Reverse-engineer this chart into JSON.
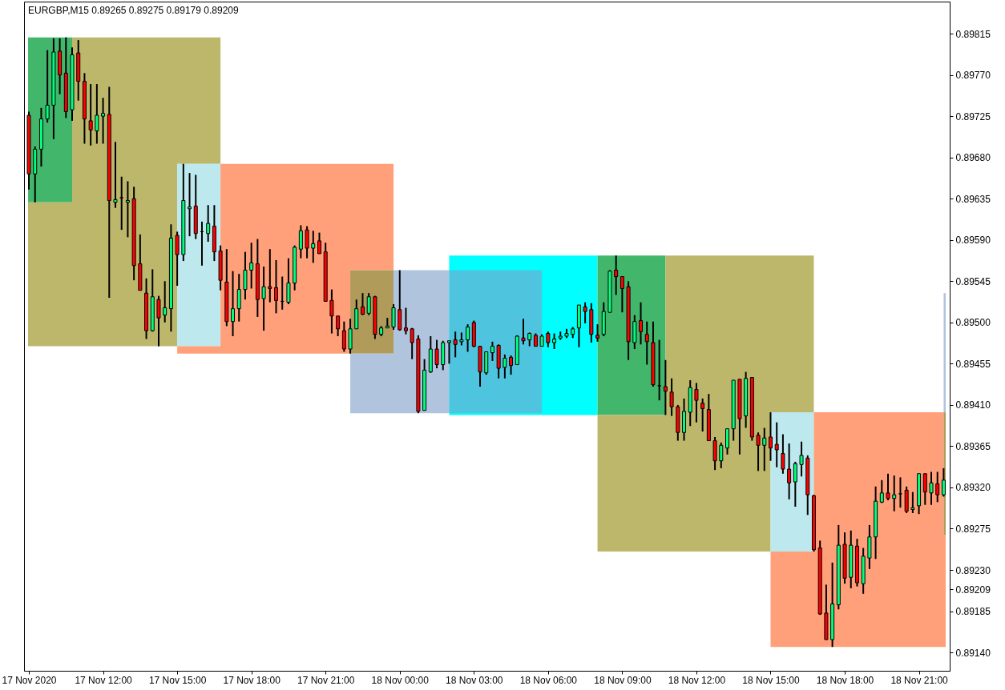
{
  "chart_data": {
    "type": "candlestick",
    "title": "EURGBP,M15 0.89265 0.89275 0.89179 0.89209",
    "x": [
      "2020-11-17T09:00",
      "2020-11-17T09:15",
      "2020-11-17T09:30",
      "2020-11-17T09:45",
      "2020-11-17T10:00",
      "2020-11-17T10:15",
      "2020-11-17T10:30",
      "2020-11-17T10:45",
      "2020-11-17T11:00",
      "2020-11-17T11:15",
      "2020-11-17T11:30",
      "2020-11-17T11:45",
      "2020-11-17T12:00",
      "2020-11-17T12:15",
      "2020-11-17T12:30",
      "2020-11-17T12:45",
      "2020-11-17T13:00",
      "2020-11-17T13:15",
      "2020-11-17T13:30",
      "2020-11-17T13:45",
      "2020-11-17T14:00",
      "2020-11-17T14:15",
      "2020-11-17T14:30",
      "2020-11-17T14:45",
      "2020-11-17T15:00",
      "2020-11-17T15:15",
      "2020-11-17T15:30",
      "2020-11-17T15:45",
      "2020-11-17T16:00",
      "2020-11-17T16:15",
      "2020-11-17T16:30",
      "2020-11-17T16:45",
      "2020-11-17T17:00",
      "2020-11-17T17:15",
      "2020-11-17T17:30",
      "2020-11-17T17:45",
      "2020-11-17T18:00",
      "2020-11-17T18:15",
      "2020-11-17T18:30",
      "2020-11-17T18:45",
      "2020-11-17T19:00",
      "2020-11-17T19:15",
      "2020-11-17T19:30",
      "2020-11-17T19:45",
      "2020-11-17T20:00",
      "2020-11-17T20:15",
      "2020-11-17T20:30",
      "2020-11-17T20:45",
      "2020-11-17T21:00",
      "2020-11-17T21:15",
      "2020-11-17T21:30",
      "2020-11-17T21:45",
      "2020-11-17T22:00",
      "2020-11-17T22:15",
      "2020-11-17T22:30",
      "2020-11-17T22:45",
      "2020-11-17T23:00",
      "2020-11-17T23:15",
      "2020-11-17T23:30",
      "2020-11-17T23:45",
      "2020-11-18T00:00",
      "2020-11-18T00:15",
      "2020-11-18T00:30",
      "2020-11-18T00:45",
      "2020-11-18T01:00",
      "2020-11-18T01:15",
      "2020-11-18T01:30",
      "2020-11-18T01:45",
      "2020-11-18T02:00",
      "2020-11-18T02:15",
      "2020-11-18T02:30",
      "2020-11-18T02:45",
      "2020-11-18T03:00",
      "2020-11-18T03:15",
      "2020-11-18T03:30",
      "2020-11-18T03:45",
      "2020-11-18T04:00",
      "2020-11-18T04:15",
      "2020-11-18T04:30",
      "2020-11-18T04:45",
      "2020-11-18T05:00",
      "2020-11-18T05:15",
      "2020-11-18T05:30",
      "2020-11-18T05:45",
      "2020-11-18T06:00",
      "2020-11-18T06:15",
      "2020-11-18T06:30",
      "2020-11-18T06:45",
      "2020-11-18T07:00",
      "2020-11-18T07:15",
      "2020-11-18T07:30",
      "2020-11-18T07:45",
      "2020-11-18T08:00",
      "2020-11-18T08:15",
      "2020-11-18T08:30",
      "2020-11-18T08:45",
      "2020-11-18T09:00",
      "2020-11-18T09:15",
      "2020-11-18T09:30",
      "2020-11-18T09:45",
      "2020-11-18T10:00",
      "2020-11-18T10:15",
      "2020-11-18T10:30",
      "2020-11-18T10:45",
      "2020-11-18T11:00",
      "2020-11-18T11:15",
      "2020-11-18T11:30",
      "2020-11-18T11:45",
      "2020-11-18T12:00",
      "2020-11-18T12:15",
      "2020-11-18T12:30",
      "2020-11-18T12:45",
      "2020-11-18T13:00",
      "2020-11-18T13:15",
      "2020-11-18T13:30",
      "2020-11-18T13:45",
      "2020-11-18T14:00",
      "2020-11-18T14:15",
      "2020-11-18T14:30",
      "2020-11-18T14:45",
      "2020-11-18T15:00",
      "2020-11-18T15:15",
      "2020-11-18T15:30",
      "2020-11-18T15:45",
      "2020-11-18T16:00",
      "2020-11-18T16:15",
      "2020-11-18T16:30",
      "2020-11-18T16:45",
      "2020-11-18T17:00",
      "2020-11-18T17:15",
      "2020-11-18T17:30",
      "2020-11-18T17:45",
      "2020-11-18T18:00",
      "2020-11-18T18:15",
      "2020-11-18T18:30",
      "2020-11-18T18:45",
      "2020-11-18T19:00",
      "2020-11-18T19:15",
      "2020-11-18T19:30",
      "2020-11-18T19:45",
      "2020-11-18T20:00",
      "2020-11-18T20:15",
      "2020-11-18T20:30",
      "2020-11-18T20:45",
      "2020-11-18T21:00",
      "2020-11-18T21:15",
      "2020-11-18T21:30",
      "2020-11-18T21:45",
      "2020-11-18T22:00"
    ],
    "ohlc": [
      [
        0.89726,
        0.8973,
        0.89645,
        0.89662
      ],
      [
        0.89662,
        0.89692,
        0.89631,
        0.89689
      ],
      [
        0.89689,
        0.89734,
        0.8967,
        0.89722
      ],
      [
        0.89722,
        0.89797,
        0.89718,
        0.89737
      ],
      [
        0.89737,
        0.8981,
        0.897,
        0.89795
      ],
      [
        0.89796,
        0.8981,
        0.89749,
        0.8977
      ],
      [
        0.89772,
        0.89811,
        0.89723,
        0.8973
      ],
      [
        0.89732,
        0.898,
        0.8972,
        0.89792
      ],
      [
        0.89794,
        0.89808,
        0.89742,
        0.89763
      ],
      [
        0.89763,
        0.89772,
        0.89695,
        0.89722
      ],
      [
        0.8972,
        0.8976,
        0.89693,
        0.8971
      ],
      [
        0.89709,
        0.8976,
        0.89695,
        0.89726
      ],
      [
        0.89725,
        0.89745,
        0.89695,
        0.89728
      ],
      [
        0.89727,
        0.89757,
        0.89527,
        0.89633
      ],
      [
        0.89631,
        0.89697,
        0.89625,
        0.89634
      ],
      [
        0.89636,
        0.89659,
        0.89601,
        0.89636
      ],
      [
        0.89631,
        0.89654,
        0.89593,
        0.89633
      ],
      [
        0.89635,
        0.89648,
        0.89546,
        0.89562
      ],
      [
        0.89564,
        0.89596,
        0.89535,
        0.89535
      ],
      [
        0.89532,
        0.89548,
        0.89482,
        0.89491
      ],
      [
        0.89491,
        0.89558,
        0.8949,
        0.89528
      ],
      [
        0.89525,
        0.89529,
        0.89474,
        0.89505
      ],
      [
        0.89508,
        0.89545,
        0.895,
        0.89516
      ],
      [
        0.89515,
        0.89607,
        0.8949,
        0.89592
      ],
      [
        0.89595,
        0.89599,
        0.8954,
        0.89574
      ],
      [
        0.89574,
        0.89673,
        0.89567,
        0.89633
      ],
      [
        0.89624,
        0.89663,
        0.89594,
        0.89626
      ],
      [
        0.89627,
        0.89661,
        0.89591,
        0.89597
      ],
      [
        0.89599,
        0.8961,
        0.89562,
        0.89599
      ],
      [
        0.89597,
        0.89628,
        0.89588,
        0.89608
      ],
      [
        0.89605,
        0.89628,
        0.89567,
        0.89577
      ],
      [
        0.89578,
        0.89584,
        0.89535,
        0.89546
      ],
      [
        0.89544,
        0.8958,
        0.89496,
        0.89501
      ],
      [
        0.89501,
        0.89556,
        0.89485,
        0.89515
      ],
      [
        0.89515,
        0.89553,
        0.89501,
        0.89536
      ],
      [
        0.89536,
        0.89577,
        0.89525,
        0.89557
      ],
      [
        0.89557,
        0.89587,
        0.89537,
        0.89565
      ],
      [
        0.89564,
        0.89591,
        0.89506,
        0.89525
      ],
      [
        0.89526,
        0.89561,
        0.89491,
        0.89539
      ],
      [
        0.89539,
        0.8958,
        0.89522,
        0.89537
      ],
      [
        0.89538,
        0.89568,
        0.8951,
        0.89524
      ],
      [
        0.89523,
        0.8955,
        0.89514,
        0.89523
      ],
      [
        0.89522,
        0.8957,
        0.8952,
        0.89543
      ],
      [
        0.89543,
        0.89584,
        0.89535,
        0.89582
      ],
      [
        0.8958,
        0.89606,
        0.8957,
        0.896
      ],
      [
        0.89601,
        0.89605,
        0.8957,
        0.89581
      ],
      [
        0.89581,
        0.896,
        0.89565,
        0.89586
      ],
      [
        0.89589,
        0.89598,
        0.89575,
        0.89575
      ],
      [
        0.89577,
        0.89587,
        0.89523,
        0.89523
      ],
      [
        0.89524,
        0.89536,
        0.89488,
        0.89507
      ],
      [
        0.89507,
        0.89507,
        0.89485,
        0.89493
      ],
      [
        0.89491,
        0.89501,
        0.89468,
        0.89471
      ],
      [
        0.89471,
        0.89504,
        0.89466,
        0.89493
      ],
      [
        0.89493,
        0.89525,
        0.89493,
        0.89515
      ],
      [
        0.89517,
        0.89532,
        0.89508,
        0.89509
      ],
      [
        0.8951,
        0.89532,
        0.89508,
        0.89528
      ],
      [
        0.89528,
        0.89529,
        0.89482,
        0.89487
      ],
      [
        0.89487,
        0.89496,
        0.89485,
        0.89494
      ],
      [
        0.89494,
        0.89505,
        0.89494,
        0.89496
      ],
      [
        0.89495,
        0.8952,
        0.89492,
        0.89516
      ],
      [
        0.89514,
        0.89557,
        0.89491,
        0.89492
      ],
      [
        0.89494,
        0.89516,
        0.89487,
        0.89491
      ],
      [
        0.89493,
        0.89494,
        0.8946,
        0.89478
      ],
      [
        0.89482,
        0.89486,
        0.89401,
        0.89403
      ],
      [
        0.89404,
        0.8946,
        0.89404,
        0.89448
      ],
      [
        0.89446,
        0.89485,
        0.89445,
        0.89471
      ],
      [
        0.89471,
        0.89481,
        0.8945,
        0.89454
      ],
      [
        0.89454,
        0.8948,
        0.89448,
        0.89478
      ],
      [
        0.89478,
        0.8948,
        0.89455,
        0.8948
      ],
      [
        0.89481,
        0.8949,
        0.89462,
        0.89476
      ],
      [
        0.89479,
        0.89489,
        0.89475,
        0.89481
      ],
      [
        0.89481,
        0.89498,
        0.89468,
        0.89495
      ],
      [
        0.895,
        0.89502,
        0.89473,
        0.89474
      ],
      [
        0.89474,
        0.89474,
        0.8943,
        0.89446
      ],
      [
        0.89445,
        0.89468,
        0.89443,
        0.89468
      ],
      [
        0.89467,
        0.89479,
        0.89458,
        0.89474
      ],
      [
        0.89475,
        0.89476,
        0.89439,
        0.8945
      ],
      [
        0.89451,
        0.89465,
        0.89439,
        0.89461
      ],
      [
        0.89462,
        0.89464,
        0.89443,
        0.89453
      ],
      [
        0.89454,
        0.89486,
        0.89454,
        0.89485
      ],
      [
        0.89483,
        0.89504,
        0.89476,
        0.8948
      ],
      [
        0.89481,
        0.89489,
        0.89474,
        0.89488
      ],
      [
        0.89486,
        0.89488,
        0.89474,
        0.89474
      ],
      [
        0.89474,
        0.89487,
        0.89474,
        0.89485
      ],
      [
        0.89488,
        0.8949,
        0.89473,
        0.89478
      ],
      [
        0.89478,
        0.89488,
        0.89471,
        0.89482
      ],
      [
        0.89483,
        0.8949,
        0.89481,
        0.89485
      ],
      [
        0.89485,
        0.89493,
        0.89483,
        0.89488
      ],
      [
        0.89487,
        0.89495,
        0.89483,
        0.89493
      ],
      [
        0.89494,
        0.89519,
        0.89473,
        0.89519
      ],
      [
        0.89517,
        0.89522,
        0.89499,
        0.89512
      ],
      [
        0.89514,
        0.89521,
        0.89478,
        0.89487
      ],
      [
        0.89486,
        0.89498,
        0.89479,
        0.89483
      ],
      [
        0.89487,
        0.89522,
        0.89485,
        0.89512
      ],
      [
        0.89511,
        0.89557,
        0.89511,
        0.89556
      ],
      [
        0.89557,
        0.89573,
        0.8953,
        0.8955
      ],
      [
        0.8955,
        0.8955,
        0.89511,
        0.89537
      ],
      [
        0.89539,
        0.89545,
        0.89459,
        0.89479
      ],
      [
        0.89478,
        0.89508,
        0.89471,
        0.89501
      ],
      [
        0.89502,
        0.89522,
        0.89476,
        0.8949
      ],
      [
        0.89487,
        0.89501,
        0.89454,
        0.89479
      ],
      [
        0.89478,
        0.89501,
        0.8943,
        0.89432
      ],
      [
        0.89431,
        0.89481,
        0.89415,
        0.89431
      ],
      [
        0.8943,
        0.89459,
        0.89399,
        0.89425
      ],
      [
        0.89424,
        0.89439,
        0.89398,
        0.89408
      ],
      [
        0.89408,
        0.8941,
        0.89371,
        0.8938
      ],
      [
        0.8938,
        0.89417,
        0.89371,
        0.89403
      ],
      [
        0.89402,
        0.89437,
        0.89387,
        0.89429
      ],
      [
        0.89427,
        0.89434,
        0.89391,
        0.89415
      ],
      [
        0.89412,
        0.89417,
        0.89381,
        0.89406
      ],
      [
        0.89405,
        0.89422,
        0.89371,
        0.89371
      ],
      [
        0.89371,
        0.89375,
        0.89339,
        0.89349
      ],
      [
        0.89349,
        0.89369,
        0.89341,
        0.89366
      ],
      [
        0.89363,
        0.89384,
        0.89356,
        0.89384
      ],
      [
        0.89384,
        0.89437,
        0.89371,
        0.89437
      ],
      [
        0.89438,
        0.89438,
        0.89356,
        0.89395
      ],
      [
        0.89398,
        0.89446,
        0.89385,
        0.89439
      ],
      [
        0.8944,
        0.8944,
        0.89371,
        0.89375
      ],
      [
        0.89377,
        0.8938,
        0.89338,
        0.89366
      ],
      [
        0.89366,
        0.89385,
        0.89338,
        0.89374
      ],
      [
        0.89375,
        0.89402,
        0.89349,
        0.89363
      ],
      [
        0.89367,
        0.89391,
        0.89342,
        0.89361
      ],
      [
        0.89357,
        0.89378,
        0.89335,
        0.8934
      ],
      [
        0.8934,
        0.89368,
        0.89307,
        0.89325
      ],
      [
        0.89326,
        0.89348,
        0.89299,
        0.89346
      ],
      [
        0.89345,
        0.8937,
        0.89332,
        0.89355
      ],
      [
        0.89352,
        0.89355,
        0.8929,
        0.89312
      ],
      [
        0.89311,
        0.89312,
        0.8925,
        0.89252
      ],
      [
        0.89254,
        0.89262,
        0.89181,
        0.89182
      ],
      [
        0.89183,
        0.89214,
        0.89154,
        0.89154
      ],
      [
        0.89154,
        0.89238,
        0.89146,
        0.89193
      ],
      [
        0.89192,
        0.89279,
        0.89187,
        0.89257
      ],
      [
        0.89258,
        0.89271,
        0.89215,
        0.89221
      ],
      [
        0.89222,
        0.89273,
        0.8921,
        0.89257
      ],
      [
        0.89256,
        0.89264,
        0.89212,
        0.89216
      ],
      [
        0.89215,
        0.89254,
        0.89204,
        0.89245
      ],
      [
        0.89243,
        0.89279,
        0.89231,
        0.89266
      ],
      [
        0.89266,
        0.89321,
        0.89242,
        0.89305
      ],
      [
        0.89304,
        0.89328,
        0.89303,
        0.89314
      ],
      [
        0.89314,
        0.89335,
        0.89306,
        0.89308
      ],
      [
        0.89308,
        0.89333,
        0.89294,
        0.89312
      ],
      [
        0.89313,
        0.89331,
        0.89298,
        0.89313
      ],
      [
        0.89317,
        0.89321,
        0.89292,
        0.89294
      ],
      [
        0.89296,
        0.89315,
        0.89292,
        0.89298
      ],
      [
        0.893,
        0.89335,
        0.89291,
        0.89335
      ],
      [
        0.89335,
        0.89335,
        0.89301,
        0.89315
      ],
      [
        0.89314,
        0.89337,
        0.89301,
        0.89325
      ],
      [
        0.89324,
        0.89337,
        0.89304,
        0.89312
      ],
      [
        0.89312,
        0.89341,
        0.8931,
        0.89328
      ]
    ],
    "colors": [
      "#ff0000",
      "#00ff7f",
      "#00ff7f",
      "#00ff7f",
      "#00ff7f",
      "#ff0000",
      "#ff0000",
      "#00ff7f",
      "#ff0000",
      "#ff0000",
      "#ff0000",
      "#00ff7f",
      "#00ff7f",
      "#ff0000",
      "#00ff7f",
      "#000000",
      "#00ff7f",
      "#ff0000",
      "#ff0000",
      "#ff0000",
      "#00ff7f",
      "#ff0000",
      "#00ff7f",
      "#00ff7f",
      "#ff0000",
      "#00ff7f",
      "#00ff7f",
      "#ff0000",
      "#000000",
      "#00ff7f",
      "#ff0000",
      "#ff0000",
      "#ff0000",
      "#00ff7f",
      "#00ff7f",
      "#00ff7f",
      "#00ff7f",
      "#ff0000",
      "#00ff7f",
      "#ff0000",
      "#ff0000",
      "#000000",
      "#00ff7f",
      "#00ff7f",
      "#00ff7f",
      "#ff0000",
      "#00ff7f",
      "#ff0000",
      "#ff0000",
      "#ff0000",
      "#ff0000",
      "#ff0000",
      "#00ff7f",
      "#00ff7f",
      "#ff0000",
      "#00ff7f",
      "#ff0000",
      "#00ff7f",
      "#00ff7f",
      "#00ff7f",
      "#ff0000",
      "#ff0000",
      "#ff0000",
      "#ff0000",
      "#00ff7f",
      "#00ff7f",
      "#ff0000",
      "#00ff7f",
      "#00ff7f",
      "#ff0000",
      "#00ff7f",
      "#00ff7f",
      "#ff0000",
      "#ff0000",
      "#00ff7f",
      "#00ff7f",
      "#ff0000",
      "#00ff7f",
      "#ff0000",
      "#00ff7f",
      "#ff0000",
      "#00ff7f",
      "#ff0000",
      "#00ff7f",
      "#ff0000",
      "#00ff7f",
      "#00ff7f",
      "#00ff7f",
      "#00ff7f",
      "#00ff7f",
      "#ff0000",
      "#ff0000",
      "#ff0000",
      "#00ff7f",
      "#00ff7f",
      "#ff0000",
      "#ff0000",
      "#ff0000",
      "#00ff7f",
      "#ff0000",
      "#ff0000",
      "#ff0000",
      "#000000",
      "#ff0000",
      "#ff0000",
      "#ff0000",
      "#00ff7f",
      "#00ff7f",
      "#ff0000",
      "#ff0000",
      "#ff0000",
      "#ff0000",
      "#00ff7f",
      "#00ff7f",
      "#00ff7f",
      "#ff0000",
      "#00ff7f",
      "#ff0000",
      "#ff0000",
      "#00ff7f",
      "#ff0000",
      "#ff0000",
      "#ff0000",
      "#ff0000",
      "#00ff7f",
      "#00ff7f",
      "#ff0000",
      "#ff0000",
      "#ff0000",
      "#ff0000",
      "#00ff7f",
      "#00ff7f",
      "#ff0000",
      "#00ff7f",
      "#ff0000",
      "#00ff7f",
      "#00ff7f",
      "#00ff7f",
      "#00ff7f",
      "#ff0000",
      "#00ff7f",
      "#000000",
      "#ff0000",
      "#00ff7f",
      "#00ff7f",
      "#ff0000",
      "#00ff7f",
      "#ff0000",
      "#00ff7f"
    ],
    "series": [
      {
        "type": "area",
        "color": "#42b76b",
        "x": [
          "2020-11-17T08:58",
          "2020-11-17T10:45"
        ],
        "values": [
          null,
          null
        ],
        "lower": [
          0.89631,
          0.89631
        ],
        "upper": [
          0.89811,
          0.89811
        ]
      },
      {
        "type": "area",
        "color": "#bdb76b",
        "x": [
          "2020-11-17T08:58",
          "2020-11-17T10:45",
          "2020-11-17T10:45",
          "2020-11-17T15:00",
          "2020-11-17T15:00",
          "2020-11-17T16:45"
        ],
        "values": [
          null,
          null,
          null,
          null,
          null,
          null
        ],
        "lower": [
          0.89474,
          0.89474,
          0.89474,
          0.89474,
          0.89673,
          0.89673
        ],
        "upper": [
          0.89631,
          0.89631,
          0.89811,
          0.89811,
          0.89811,
          0.89811
        ]
      },
      {
        "type": "area",
        "color": "#bde8ee",
        "x": [
          "2020-11-17T15:00",
          "2020-11-17T16:45"
        ],
        "values": [
          null,
          null
        ],
        "lower": [
          0.89474,
          0.89474
        ],
        "upper": [
          0.89673,
          0.89673
        ]
      },
      {
        "type": "area",
        "color": "#ffa07a",
        "x": [
          "2020-11-17T15:00",
          "2020-11-17T16:45",
          "2020-11-17T16:45",
          "2020-11-17T22:00",
          "2020-11-17T22:00",
          "2020-11-17T23:45"
        ],
        "values": [
          null,
          null,
          null,
          null,
          null,
          null
        ],
        "lower": [
          0.89466,
          0.89466,
          0.89466,
          0.89466,
          0.89557,
          0.89557
        ],
        "upper": [
          0.89474,
          0.89474,
          0.89673,
          0.89673,
          0.89673,
          0.89673
        ]
      },
      {
        "type": "area",
        "color": "#b09b5b",
        "x": [
          "2020-11-17T22:00",
          "2020-11-17T23:45"
        ],
        "values": [
          null,
          null
        ],
        "lower": [
          0.89466,
          0.89466
        ],
        "upper": [
          0.89557,
          0.89557
        ]
      },
      {
        "type": "area",
        "color": "#b0c4de",
        "x": [
          "2020-11-17T22:00",
          "2020-11-17T23:45",
          "2020-11-17T23:45",
          "2020-11-18T02:00"
        ],
        "values": [
          null,
          null,
          null,
          null
        ],
        "lower": [
          0.89401,
          0.89401,
          0.89401,
          0.89401
        ],
        "upper": [
          0.89466,
          0.89466,
          0.89557,
          0.89557
        ]
      },
      {
        "type": "area",
        "color": "#00ffff",
        "x": [
          "2020-11-18T02:00",
          "2020-11-18T08:00"
        ],
        "values": [
          null,
          null
        ],
        "lower": [
          0.89399,
          0.89399
        ],
        "upper": [
          0.89573,
          0.89573
        ]
      },
      {
        "type": "area",
        "color": "#4fc4de",
        "x": [
          "2020-11-18T02:00",
          "2020-11-18T05:45"
        ],
        "values": [
          null,
          null
        ],
        "lower": [
          0.89401,
          0.89401
        ],
        "upper": [
          0.89557,
          0.89557
        ]
      },
      {
        "type": "area",
        "color": "#42b76b",
        "x": [
          "2020-11-18T08:00",
          "2020-11-18T10:45"
        ],
        "values": [
          null,
          null
        ],
        "lower": [
          0.89399,
          0.89399
        ],
        "upper": [
          0.89573,
          0.89573
        ]
      },
      {
        "type": "area",
        "color": "#bdb76b",
        "x": [
          "2020-11-18T08:00",
          "2020-11-18T10:45",
          "2020-11-18T10:45",
          "2020-11-18T15:00",
          "2020-11-18T15:00",
          "2020-11-18T16:45"
        ],
        "values": [
          null,
          null,
          null,
          null,
          null,
          null
        ],
        "lower": [
          0.8925,
          0.8925,
          0.8925,
          0.8925,
          0.89402,
          0.89402
        ],
        "upper": [
          0.89399,
          0.89399,
          0.89573,
          0.89573,
          0.89573,
          0.89573
        ]
      },
      {
        "type": "area",
        "color": "#bde8ee",
        "x": [
          "2020-11-18T15:00",
          "2020-11-18T16:45"
        ],
        "values": [
          null,
          null
        ],
        "lower": [
          0.8925,
          0.8925
        ],
        "upper": [
          0.89402,
          0.89402
        ]
      },
      {
        "type": "area",
        "color": "#ffa07a",
        "x": [
          "2020-11-18T15:00",
          "2020-11-18T16:45",
          "2020-11-18T16:45",
          "2020-11-18T22:00",
          "2020-11-18T22:00",
          "2020-11-18T22:05"
        ],
        "values": [
          null,
          null,
          null,
          null,
          null,
          null
        ],
        "lower": [
          0.89146,
          0.89146,
          0.89146,
          0.89146,
          0.89146,
          0.89146
        ],
        "upper": [
          0.8925,
          0.8925,
          0.89402,
          0.89402,
          0.89268,
          0.89268
        ]
      },
      {
        "type": "area",
        "color": "#b09b5b",
        "x": [
          "2020-11-18T22:00",
          "2020-11-18T22:05"
        ],
        "values": [
          null,
          null
        ],
        "lower": [
          0.89268,
          0.89268
        ],
        "upper": [
          0.89402,
          0.89402
        ]
      },
      {
        "type": "area",
        "color": "#b0c4de",
        "x": [
          "2020-11-18T22:00",
          "2020-11-18T22:05"
        ],
        "values": [
          null,
          null
        ],
        "lower": [
          0.89402,
          0.89402
        ],
        "upper": [
          0.89532,
          0.89532
        ]
      }
    ],
    "xlim": [
      "2020-11-17T08:58",
      "2020-11-18T22:05"
    ],
    "xticks": [
      {
        "value": "2020-11-17T09:00",
        "label": "17 Nov 2020"
      },
      {
        "value": "2020-11-17T12:00",
        "label": "17 Nov 12:00"
      },
      {
        "value": "2020-11-17T15:00",
        "label": "17 Nov 15:00"
      },
      {
        "value": "2020-11-17T18:00",
        "label": "17 Nov 18:00"
      },
      {
        "value": "2020-11-17T21:00",
        "label": "17 Nov 21:00"
      },
      {
        "value": "2020-11-18T00:00",
        "label": "18 Nov 00:00"
      },
      {
        "value": "2020-11-18T03:00",
        "label": "18 Nov 03:00"
      },
      {
        "value": "2020-11-18T06:00",
        "label": "18 Nov 06:00"
      },
      {
        "value": "2020-11-18T09:00",
        "label": "18 Nov 09:00"
      },
      {
        "value": "2020-11-18T12:00",
        "label": "18 Nov 12:00"
      },
      {
        "value": "2020-11-18T15:00",
        "label": "18 Nov 15:00"
      },
      {
        "value": "2020-11-18T18:00",
        "label": "18 Nov 18:00"
      },
      {
        "value": "2020-11-18T21:00",
        "label": "18 Nov 21:00"
      }
    ],
    "ylim": [
      0.8912,
      0.8985
    ],
    "yticks": [
      {
        "value": 0.8914,
        "label": "0.89140"
      },
      0.89185,
      {
        "value": 0.89209,
        "label": "0.89209"
      },
      {
        "value": 0.8923,
        "label": "0.89230"
      },
      0.89275,
      {
        "value": 0.8932,
        "label": "0.89320"
      },
      0.89365,
      {
        "value": 0.8941,
        "label": "0.89410"
      },
      0.89455,
      {
        "value": 0.895,
        "label": "0.89500"
      },
      0.89545,
      {
        "value": 0.8959,
        "label": "0.89590"
      },
      0.89635,
      {
        "value": 0.8968,
        "label": "0.89680"
      },
      0.89725,
      {
        "value": 0.8977,
        "label": "0.89770"
      },
      0.89815
    ]
  }
}
